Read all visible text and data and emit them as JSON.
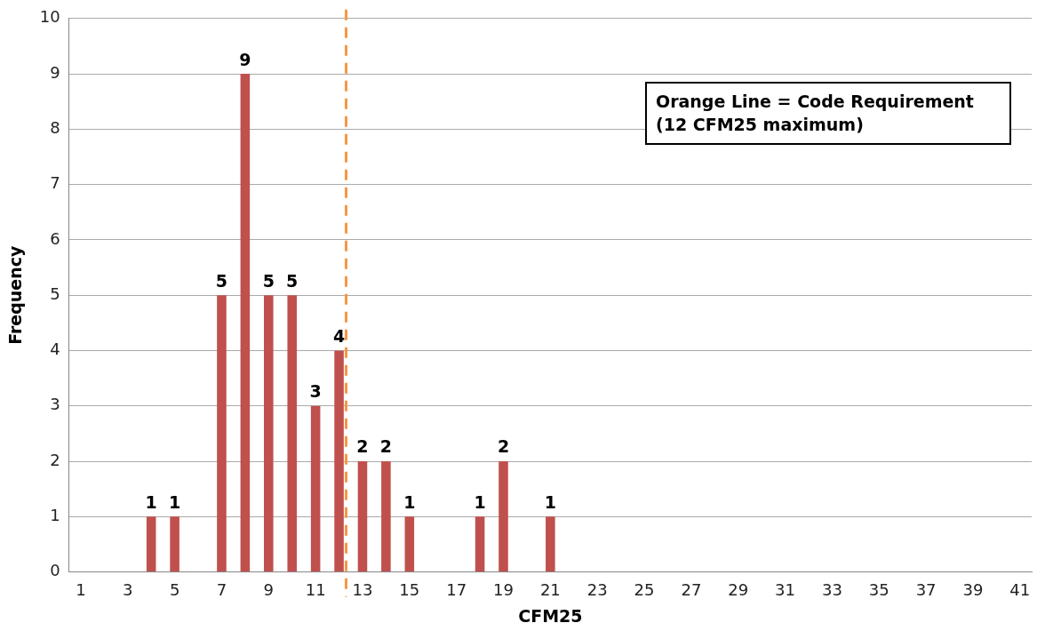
{
  "chart_data": {
    "type": "bar",
    "xlabel": "CFM25",
    "ylabel": "Frequency",
    "x": [
      4,
      5,
      7,
      8,
      9,
      10,
      11,
      12,
      13,
      14,
      15,
      18,
      19,
      21
    ],
    "values": [
      1,
      1,
      5,
      9,
      5,
      5,
      3,
      4,
      2,
      2,
      1,
      1,
      2,
      1
    ],
    "color": "#c0504d",
    "xlim": [
      0.5,
      41.5
    ],
    "xticks": [
      1,
      3,
      5,
      7,
      9,
      11,
      13,
      15,
      17,
      19,
      21,
      23,
      25,
      27,
      29,
      31,
      33,
      35,
      37,
      39,
      41
    ],
    "ylim": [
      0,
      10
    ],
    "yticks": [
      0,
      1,
      2,
      3,
      4,
      5,
      6,
      7,
      8,
      9,
      10
    ],
    "grid": "y",
    "legend": false,
    "data_labels": true,
    "ref_lines": [
      {
        "axis": "x",
        "value": 12.3,
        "color": "#f79646",
        "line_style": "dashed"
      }
    ],
    "annotations": [
      "Orange Line = Code Requirement (12 CFM25 maximum)"
    ]
  }
}
